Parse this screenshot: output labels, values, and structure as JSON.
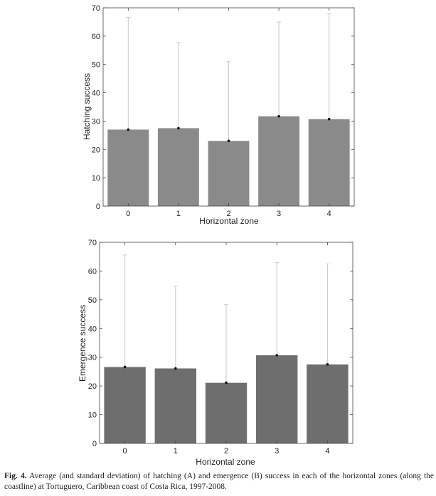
{
  "chart_data": [
    {
      "type": "bar",
      "categories": [
        "0",
        "1",
        "2",
        "3",
        "4"
      ],
      "values": [
        27,
        27.5,
        23,
        31.7,
        30.7
      ],
      "error_upper": [
        66.6,
        57.7,
        51,
        65,
        68
      ],
      "xlabel": "Horizontal zone",
      "ylabel": "Hatching success",
      "ylim": [
        0,
        70
      ],
      "yticks": [
        0,
        10,
        20,
        30,
        40,
        50,
        60,
        70
      ],
      "bar_color": "#8a8a8a",
      "grid": false
    },
    {
      "type": "bar",
      "categories": [
        "0",
        "1",
        "2",
        "3",
        "4"
      ],
      "values": [
        26.6,
        26.1,
        21.1,
        30.7,
        27.5
      ],
      "error_upper": [
        65.6,
        54.7,
        48.3,
        63,
        62.5
      ],
      "xlabel": "Horizontal zone",
      "ylabel": "Emergence success",
      "ylim": [
        0,
        70
      ],
      "yticks": [
        0,
        10,
        20,
        30,
        40,
        50,
        60,
        70
      ],
      "bar_color": "#6e6e6e",
      "grid": false
    }
  ],
  "caption": {
    "label": "Fig. 4.",
    "text": " Average (and standard deviation) of hatching (A) and emergence (B) success in each of the horizontal zones (along the coastline) at Tortuguero, Caribbean coast of Costa Rica, 1997-2008."
  }
}
